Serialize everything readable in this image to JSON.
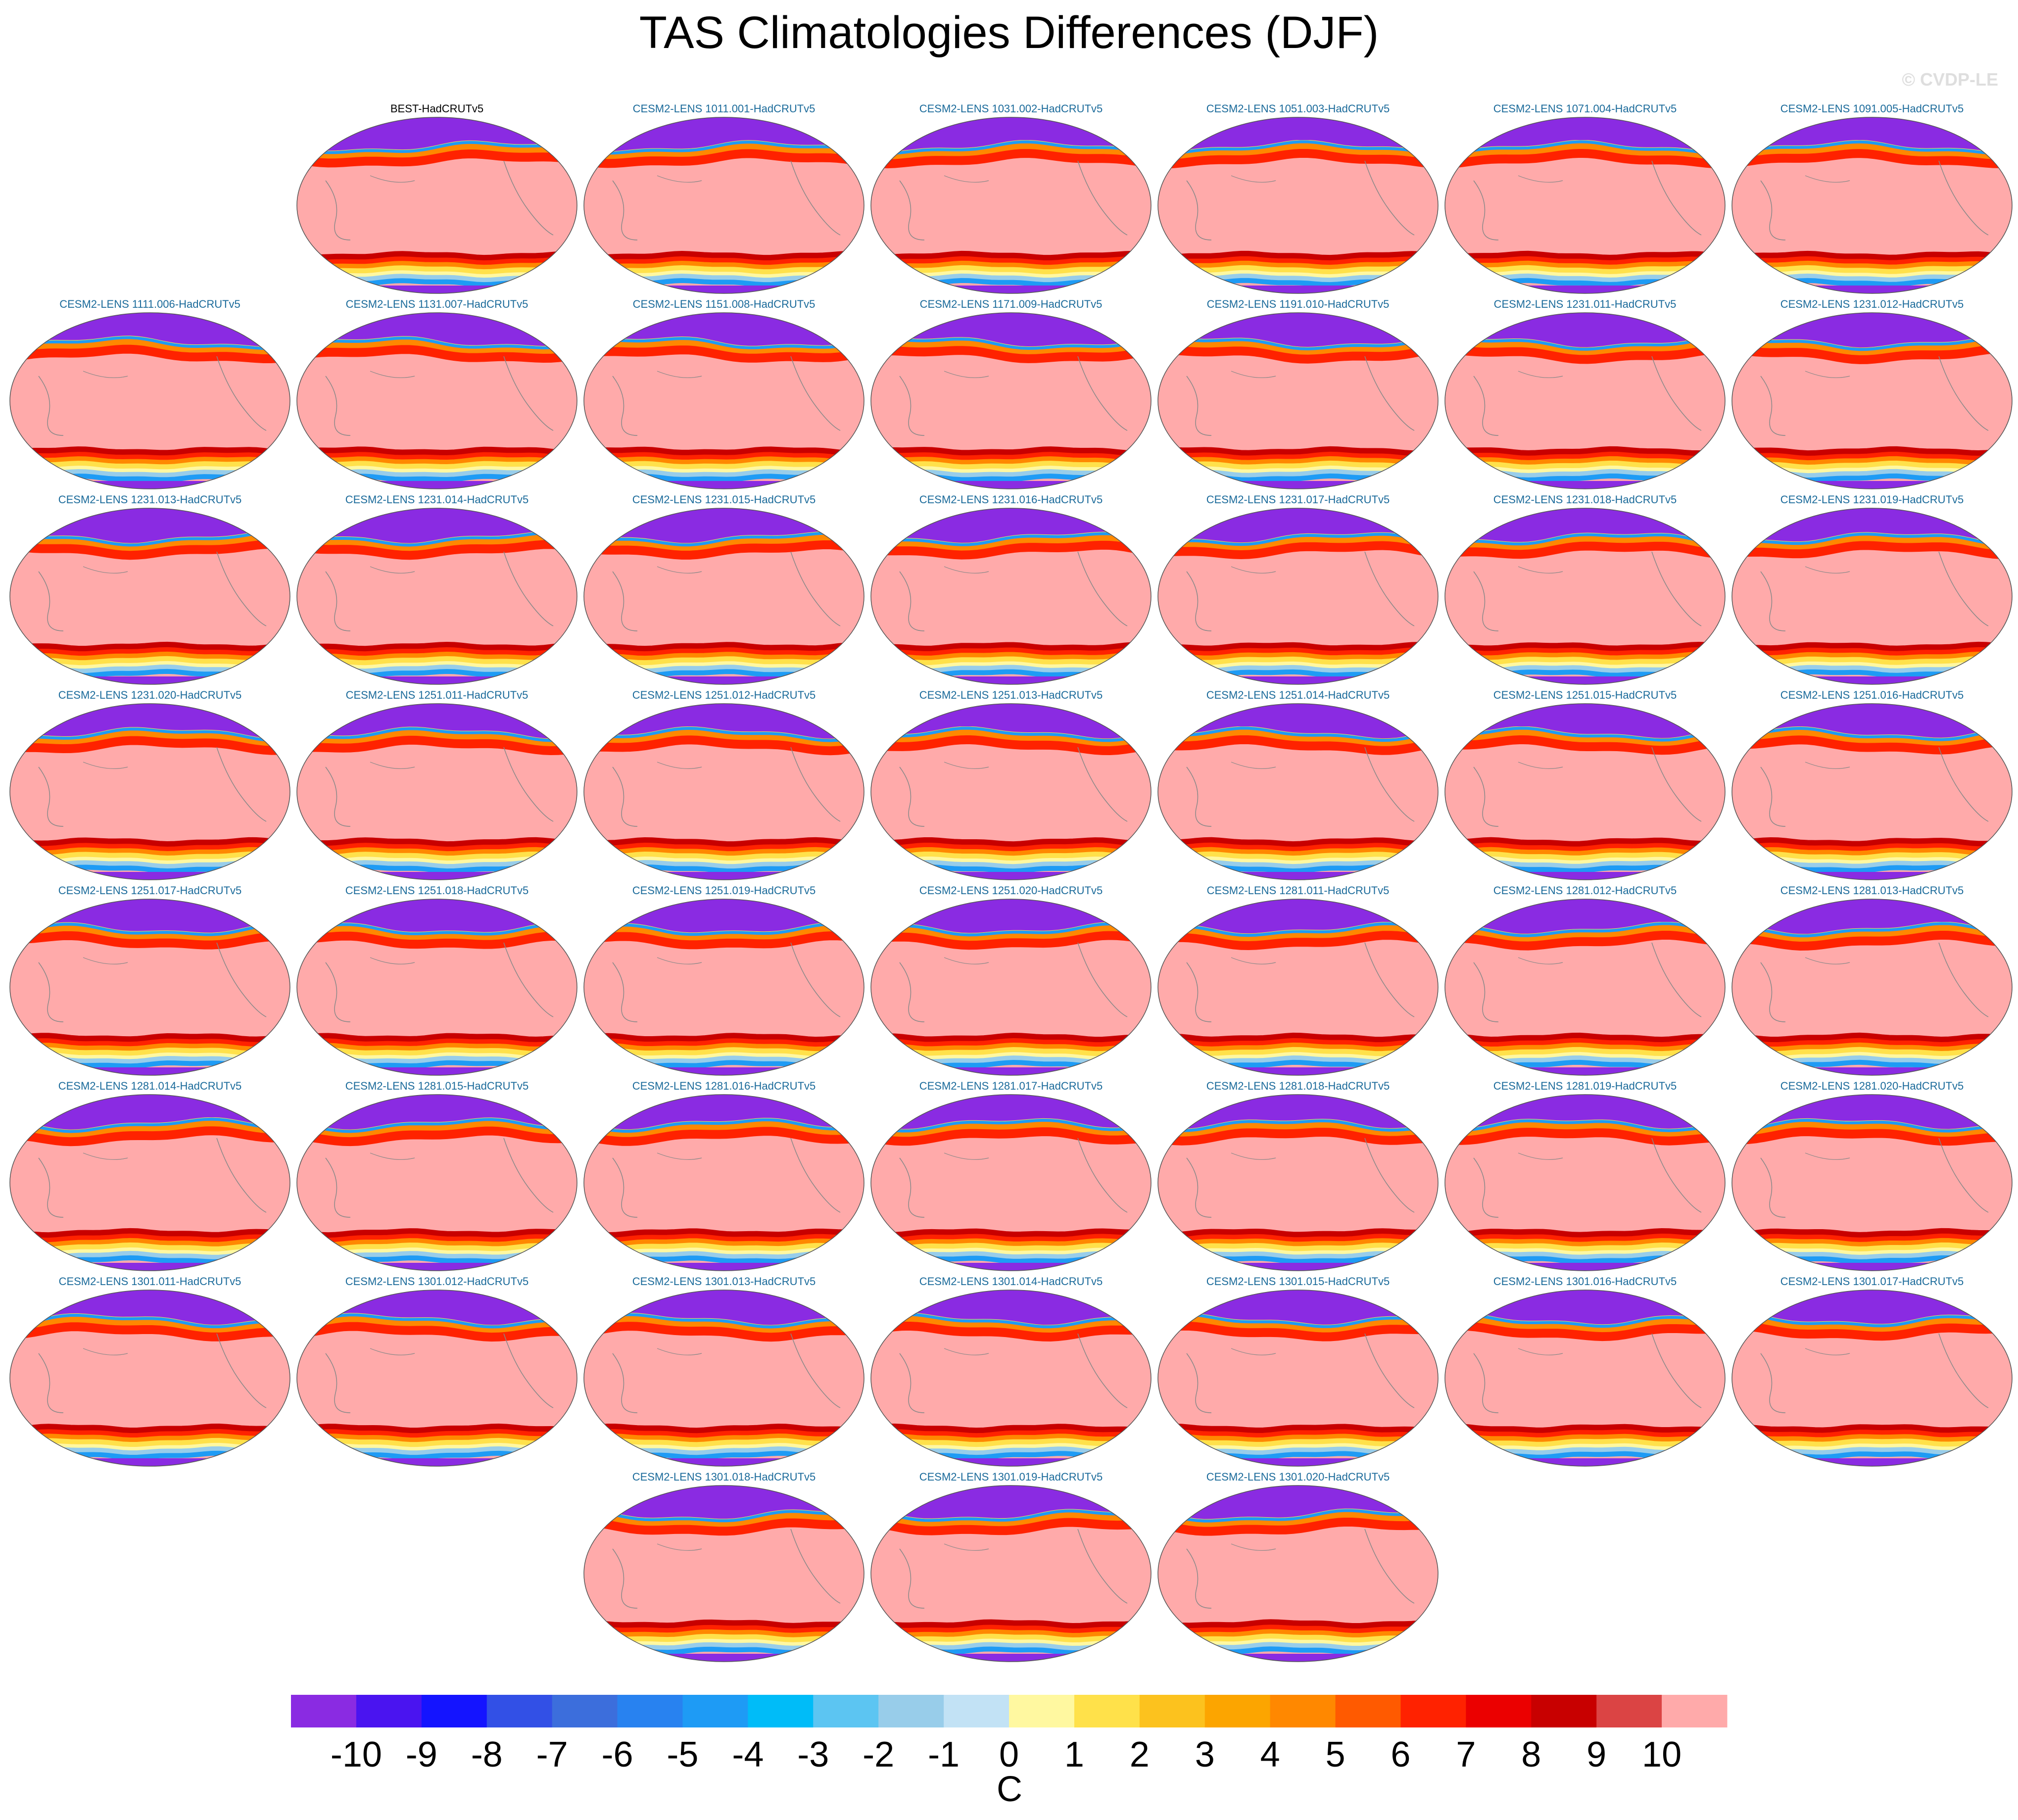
{
  "title": "TAS Climatologies Differences (DJF)",
  "watermark": "© CVDP-LE",
  "colors": {
    "label_first": "#000000",
    "label_others": "#1a6a9a",
    "warm_fill": "#ffaaaa",
    "cold_fill": "#8a2be2",
    "coast": "#888888"
  },
  "rows": [
    [
      "BEST-HadCRUTv5",
      "CESM2-LENS 1011.001-HadCRUTv5",
      "CESM2-LENS 1031.002-HadCRUTv5",
      "CESM2-LENS 1051.003-HadCRUTv5",
      "CESM2-LENS 1071.004-HadCRUTv5",
      "CESM2-LENS 1091.005-HadCRUTv5"
    ],
    [
      "CESM2-LENS 1111.006-HadCRUTv5",
      "CESM2-LENS 1131.007-HadCRUTv5",
      "CESM2-LENS 1151.008-HadCRUTv5",
      "CESM2-LENS 1171.009-HadCRUTv5",
      "CESM2-LENS 1191.010-HadCRUTv5",
      "CESM2-LENS 1231.011-HadCRUTv5",
      "CESM2-LENS 1231.012-HadCRUTv5"
    ],
    [
      "CESM2-LENS 1231.013-HadCRUTv5",
      "CESM2-LENS 1231.014-HadCRUTv5",
      "CESM2-LENS 1231.015-HadCRUTv5",
      "CESM2-LENS 1231.016-HadCRUTv5",
      "CESM2-LENS 1231.017-HadCRUTv5",
      "CESM2-LENS 1231.018-HadCRUTv5",
      "CESM2-LENS 1231.019-HadCRUTv5"
    ],
    [
      "CESM2-LENS 1231.020-HadCRUTv5",
      "CESM2-LENS 1251.011-HadCRUTv5",
      "CESM2-LENS 1251.012-HadCRUTv5",
      "CESM2-LENS 1251.013-HadCRUTv5",
      "CESM2-LENS 1251.014-HadCRUTv5",
      "CESM2-LENS 1251.015-HadCRUTv5",
      "CESM2-LENS 1251.016-HadCRUTv5"
    ],
    [
      "CESM2-LENS 1251.017-HadCRUTv5",
      "CESM2-LENS 1251.018-HadCRUTv5",
      "CESM2-LENS 1251.019-HadCRUTv5",
      "CESM2-LENS 1251.020-HadCRUTv5",
      "CESM2-LENS 1281.011-HadCRUTv5",
      "CESM2-LENS 1281.012-HadCRUTv5",
      "CESM2-LENS 1281.013-HadCRUTv5"
    ],
    [
      "CESM2-LENS 1281.014-HadCRUTv5",
      "CESM2-LENS 1281.015-HadCRUTv5",
      "CESM2-LENS 1281.016-HadCRUTv5",
      "CESM2-LENS 1281.017-HadCRUTv5",
      "CESM2-LENS 1281.018-HadCRUTv5",
      "CESM2-LENS 1281.019-HadCRUTv5",
      "CESM2-LENS 1281.020-HadCRUTv5"
    ],
    [
      "CESM2-LENS 1301.011-HadCRUTv5",
      "CESM2-LENS 1301.012-HadCRUTv5",
      "CESM2-LENS 1301.013-HadCRUTv5",
      "CESM2-LENS 1301.014-HadCRUTv5",
      "CESM2-LENS 1301.015-HadCRUTv5",
      "CESM2-LENS 1301.016-HadCRUTv5",
      "CESM2-LENS 1301.017-HadCRUTv5"
    ],
    [
      "CESM2-LENS 1301.018-HadCRUTv5",
      "CESM2-LENS 1301.019-HadCRUTv5",
      "CESM2-LENS 1301.020-HadCRUTv5"
    ]
  ],
  "colorbar": {
    "title": "C",
    "ticks": [
      "-10",
      "-9",
      "-8",
      "-7",
      "-6",
      "-5",
      "-4",
      "-3",
      "-2",
      "-1",
      "0",
      "1",
      "2",
      "3",
      "4",
      "5",
      "6",
      "7",
      "8",
      "9",
      "10"
    ],
    "colors": [
      "#8a2be2",
      "#4a14f0",
      "#1414ff",
      "#3250e6",
      "#3c6edc",
      "#2882f0",
      "#1e9bf5",
      "#00bcf8",
      "#5cc5f2",
      "#98cdea",
      "#c2e2f5",
      "#fff8a0",
      "#ffe14a",
      "#fcc21e",
      "#fca500",
      "#ff8800",
      "#ff5a00",
      "#ff2200",
      "#eb0000",
      "#c80000",
      "#db4444",
      "#ffaaaa"
    ]
  }
}
